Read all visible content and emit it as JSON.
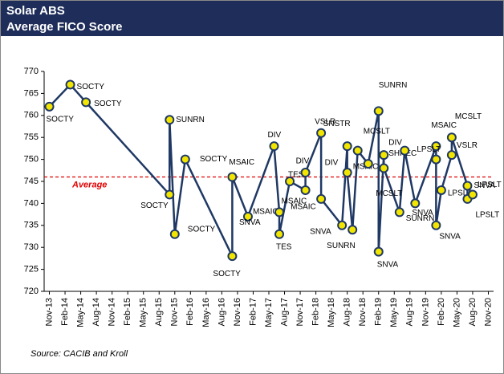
{
  "chart_data": {
    "type": "line",
    "title": "Solar ABS",
    "subtitle": "Average FICO Score",
    "source": "Source: CACIB and Kroll",
    "average": {
      "label": "Average",
      "value": 746
    },
    "x": [
      "2013-11",
      "2014-03",
      "2014-06",
      "2015-10",
      "2015-10",
      "2015-11",
      "2016-01",
      "2016-10",
      "2016-10",
      "2017-01",
      "2017-06",
      "2017-07",
      "2017-07",
      "2017-09",
      "2017-12",
      "2017-12",
      "2018-03",
      "2018-03",
      "2018-07",
      "2018-08",
      "2018-08",
      "2018-09",
      "2018-10",
      "2018-12",
      "2019-02",
      "2019-02",
      "2019-03",
      "2019-03",
      "2019-06",
      "2019-07",
      "2019-09",
      "2020-01",
      "2020-01",
      "2020-01",
      "2020-02",
      "2020-04",
      "2020-04",
      "2020-07",
      "2020-07",
      "2020-08"
    ],
    "series": [
      {
        "color": "#1f3864",
        "marker_color": "#f2e600",
        "values": [
          762,
          767,
          763,
          742,
          759,
          733,
          750,
          728,
          746,
          737,
          753,
          738,
          733,
          745,
          743,
          747,
          756,
          741,
          735,
          753,
          747,
          734,
          752,
          749,
          761,
          729,
          751,
          748,
          738,
          752,
          740,
          753,
          750,
          735,
          743,
          751,
          755,
          744,
          741,
          742
        ],
        "labels": [
          "SOCTY",
          "SOCTY",
          "SOCTY",
          "SOCTY",
          "SUNRN",
          "SOCTY",
          "SOCTY",
          "SOCTY",
          "MSAIC",
          "MSAIC",
          "DIV",
          "SNVA",
          "TES",
          "TES",
          "MSAIC",
          "DIV",
          "VSLR",
          "MSAIC",
          "SNVA",
          "SNSTR",
          "DIV",
          "SUNRN",
          "MSAIC",
          "MCSLT",
          "SUNRN",
          "SNVA",
          "SHREC",
          "MCSLT",
          "SUNRN",
          "DIV",
          "SNVA",
          "MSAIC",
          "LPSLT",
          "SNVA",
          "LPSLT",
          "VSLR",
          "MCSLT",
          "SNVA",
          "LPSLT",
          "LPSLT"
        ]
      }
    ],
    "xlim": [
      "2013-10",
      "2020-12"
    ],
    "xticks": [
      {
        "value": "2013-11",
        "label": "Nov-13"
      },
      {
        "value": "2014-02",
        "label": "Feb-14"
      },
      {
        "value": "2014-05",
        "label": "May-14"
      },
      {
        "value": "2014-08",
        "label": "Aug-14"
      },
      {
        "value": "2014-11",
        "label": "Nov-14"
      },
      {
        "value": "2015-02",
        "label": "Feb-15"
      },
      {
        "value": "2015-05",
        "label": "May-15"
      },
      {
        "value": "2015-08",
        "label": "Aug-15"
      },
      {
        "value": "2015-11",
        "label": "Nov-15"
      },
      {
        "value": "2016-02",
        "label": "Feb-16"
      },
      {
        "value": "2016-05",
        "label": "May-16"
      },
      {
        "value": "2016-08",
        "label": "Aug-16"
      },
      {
        "value": "2016-11",
        "label": "Nov-16"
      },
      {
        "value": "2017-02",
        "label": "Feb-17"
      },
      {
        "value": "2017-05",
        "label": "May-17"
      },
      {
        "value": "2017-08",
        "label": "Aug-17"
      },
      {
        "value": "2017-11",
        "label": "Nov-17"
      },
      {
        "value": "2018-02",
        "label": "Feb-18"
      },
      {
        "value": "2018-05",
        "label": "May-18"
      },
      {
        "value": "2018-08",
        "label": "Aug-18"
      },
      {
        "value": "2018-11",
        "label": "Nov-18"
      },
      {
        "value": "2019-02",
        "label": "Feb-19"
      },
      {
        "value": "2019-05",
        "label": "May-19"
      },
      {
        "value": "2019-08",
        "label": "Aug-19"
      },
      {
        "value": "2019-11",
        "label": "Nov-19"
      },
      {
        "value": "2020-02",
        "label": "Feb-20"
      },
      {
        "value": "2020-05",
        "label": "May-20"
      },
      {
        "value": "2020-08",
        "label": "Aug-20"
      },
      {
        "value": "2020-11",
        "label": "Nov-20"
      }
    ],
    "ylim": [
      720,
      770
    ],
    "yticks": [
      720,
      725,
      730,
      735,
      740,
      745,
      750,
      755,
      760,
      765,
      770
    ]
  }
}
